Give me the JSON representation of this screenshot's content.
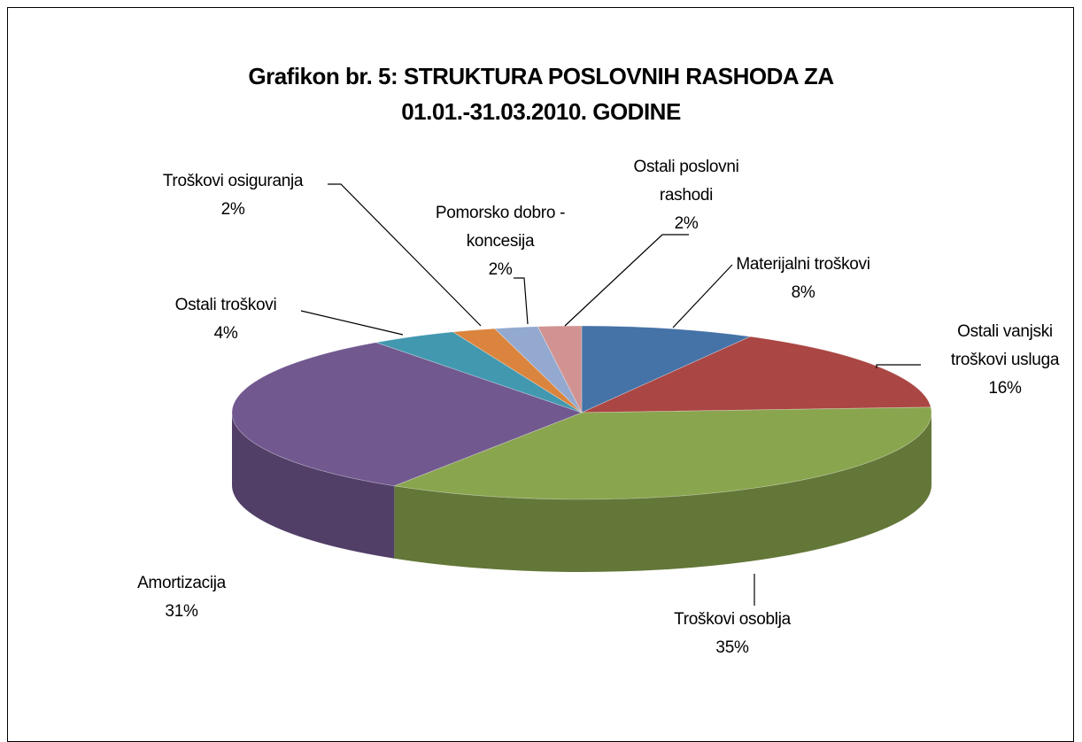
{
  "chart_data": {
    "type": "pie",
    "title": "Grafikon br. 5: STRUKTURA POSLOVNIH RASHODA ZA 01.01.-31.03.2010. GODINE",
    "categories": [
      "Materijalni troškovi",
      "Ostali vanjski troškovi usluga",
      "Troškovi osoblja",
      "Amortizacija",
      "Ostali troškovi",
      "Troškovi osiguranja",
      "Pomorsko dobro - koncesija",
      "Ostali poslovni rashodi"
    ],
    "values": [
      8,
      16,
      35,
      31,
      4,
      2,
      2,
      2
    ],
    "value_labels": [
      "8%",
      "16%",
      "35%",
      "31%",
      "4%",
      "2%",
      "2%",
      "2%"
    ],
    "colors": [
      "#4572a7",
      "#aa4643",
      "#89a54e",
      "#71588f",
      "#4198af",
      "#db843d",
      "#93a9cf",
      "#d19392"
    ],
    "three_d": true
  }
}
